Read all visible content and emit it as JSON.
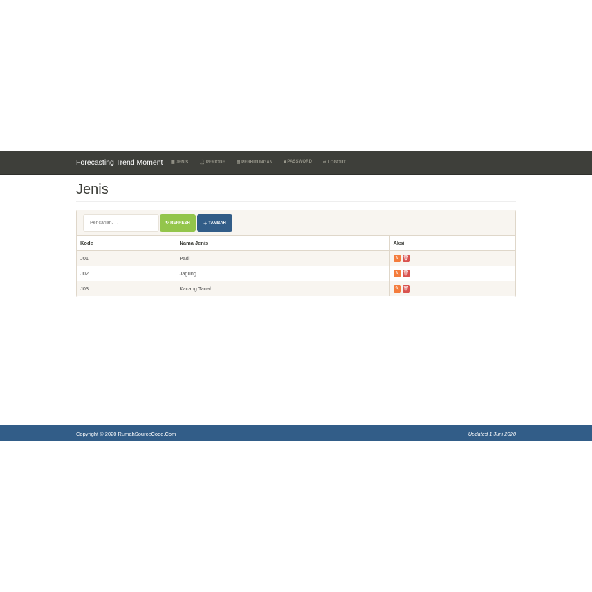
{
  "navbar": {
    "brand": "Forecasting Trend Moment",
    "items": [
      {
        "label": "JENIS",
        "icon": "th-large-icon"
      },
      {
        "label": "PERIODE",
        "icon": "user-icon"
      },
      {
        "label": "PERHITUNGAN",
        "icon": "calendar-icon"
      },
      {
        "label": "PASSWORD",
        "icon": "lock-icon"
      },
      {
        "label": "LOGOUT",
        "icon": "logout-icon"
      }
    ]
  },
  "page": {
    "title": "Jenis"
  },
  "toolbar": {
    "search_placeholder": "Pencarian. . .",
    "refresh_label": "REFRESH",
    "tambah_label": "TAMBAH"
  },
  "table": {
    "headers": [
      "Kode",
      "Nama Jenis",
      "Aksi"
    ],
    "rows": [
      {
        "kode": "J01",
        "nama": "Padi"
      },
      {
        "kode": "J02",
        "nama": "Jagung"
      },
      {
        "kode": "J03",
        "nama": "Kacang Tanah"
      }
    ]
  },
  "footer": {
    "copyright": "Copyright © 2020 RumahSourceCode.Com",
    "updated": "Updated 1 Juni 2020"
  },
  "colors": {
    "navbar": "#3e3f3a",
    "refresh": "#93c54b",
    "tambah": "#325d88",
    "edit": "#f47c3c",
    "delete": "#d9534f",
    "footer": "#325d88"
  }
}
